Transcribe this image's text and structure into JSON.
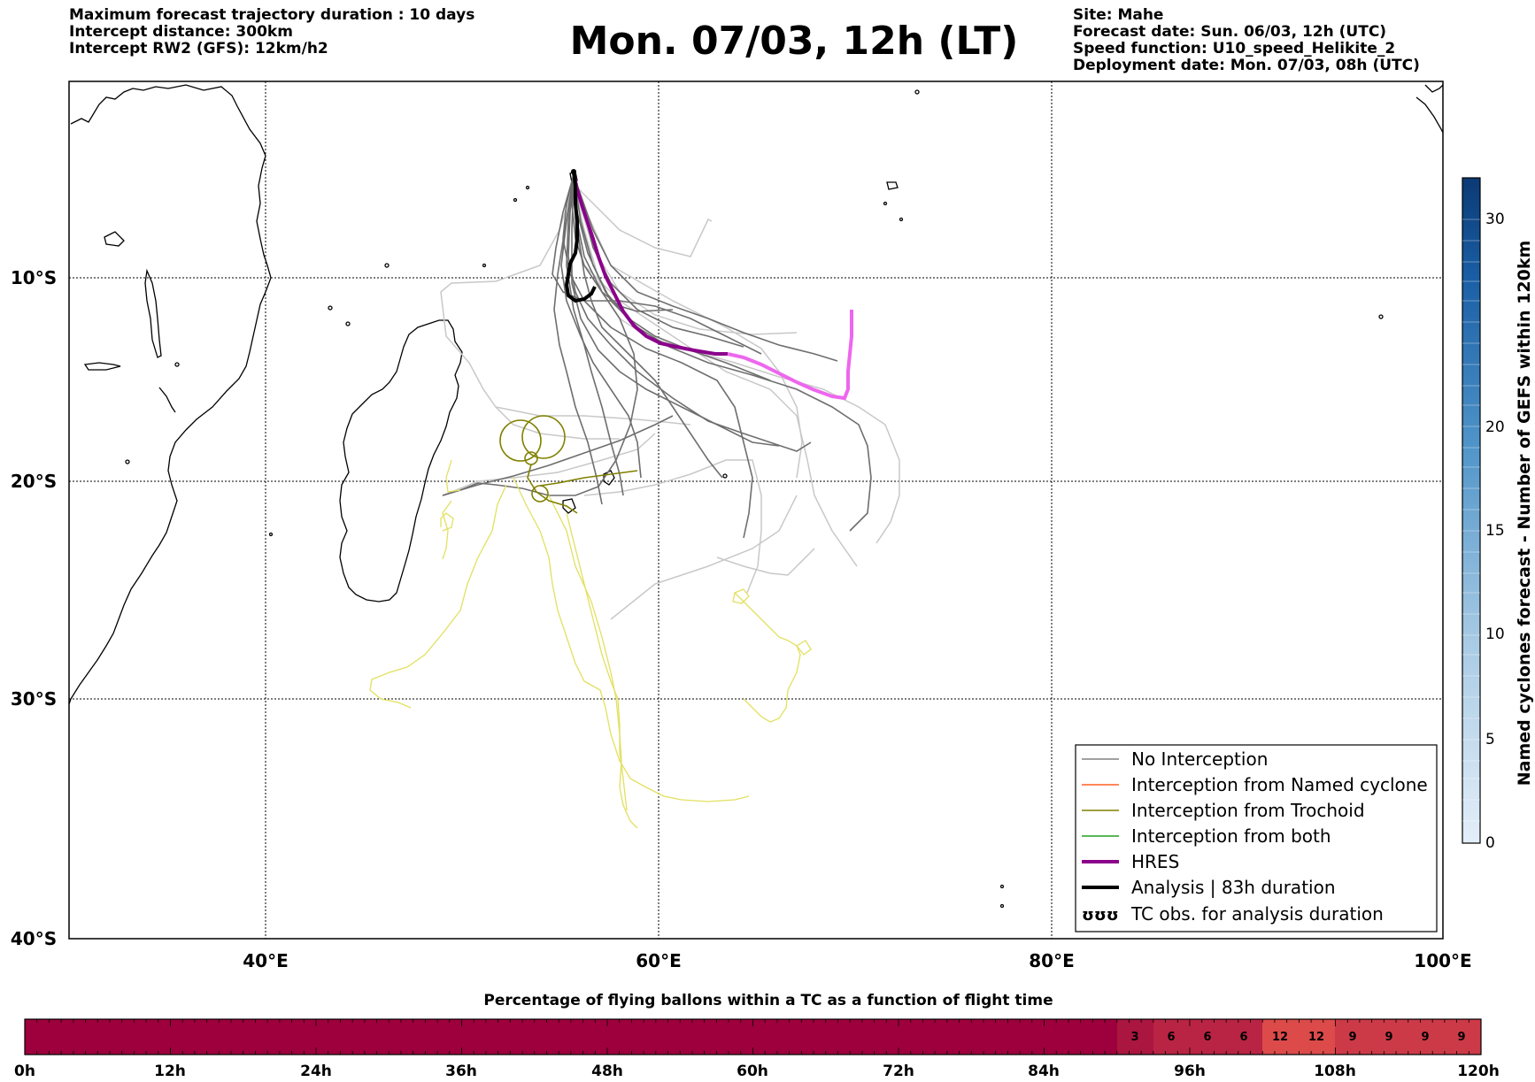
{
  "header": {
    "title": "Mon. 07/03, 12h (LT)",
    "left": [
      "Maximum forecast trajectory duration : 10 days",
      "Intercept distance: 300km",
      "Intercept RW2 (GFS):  12km/h2"
    ],
    "right": [
      "Site: Mahe",
      "Forecast date: Sun. 06/03, 12h (UTC)",
      "Speed function: U10_speed_Helikite_2",
      "Deployment date: Mon. 07/03, 08h (UTC)"
    ]
  },
  "map": {
    "lon_range": [
      30,
      100
    ],
    "lat_range": [
      -40,
      0
    ],
    "lon_ticks": [
      "40°E",
      "60°E",
      "80°E",
      "100°E"
    ],
    "lat_ticks": [
      "10°S",
      "20°S",
      "30°S",
      "40°S"
    ]
  },
  "legend": {
    "items": [
      {
        "label": "No Interception",
        "color": "#808080"
      },
      {
        "label": "Interception from Named cyclone",
        "color": "#ff6020"
      },
      {
        "label": "Interception from Trochoid",
        "color": "#808000"
      },
      {
        "label": "Interception from both",
        "color": "#20a020"
      },
      {
        "label": "HRES",
        "color": "#8b008b"
      },
      {
        "label": "Analysis | 83h duration",
        "color": "#000000"
      },
      {
        "label": "TC obs. for analysis duration",
        "symbol": "ʊʊʊ"
      }
    ]
  },
  "colorbar_right": {
    "label": "Named cyclones forecast - Number of GEFS within 120km",
    "ticks": [
      "0",
      "5",
      "10",
      "15",
      "20",
      "30"
    ]
  },
  "flight_bar": {
    "title": "Percentage of flying ballons within a TC as a function of flight time",
    "time_labels": [
      "0h",
      "12h",
      "24h",
      "36h",
      "48h",
      "60h",
      "72h",
      "84h",
      "96h",
      "108h",
      "120h"
    ],
    "cell_values": [
      "3",
      "6",
      "6",
      "6",
      "12",
      "12",
      "9",
      "9",
      "9",
      "9"
    ]
  }
}
